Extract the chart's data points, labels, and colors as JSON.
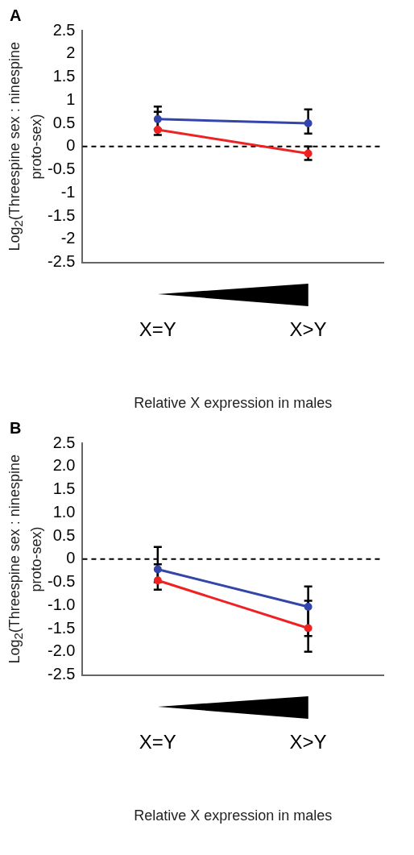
{
  "chart_data": [
    {
      "type": "line",
      "title": "A",
      "categories": [
        "X=Y",
        "X>Y"
      ],
      "xlabel": "Relative X expression in males",
      "ylabel": "Log$_{2}$(Threespine sex : ninespine proto-sex)",
      "ylim": [
        -2.5,
        2.5
      ],
      "yticks": [
        2.5,
        2,
        1.5,
        1,
        0.5,
        0,
        -0.5,
        -1,
        -1.5,
        -2,
        -2.5
      ],
      "grid": false,
      "legend": false,
      "marker": "circle",
      "series": [
        {
          "color": "#3344aa",
          "values": [
            0.59,
            0.5
          ],
          "errors": [
            [
              0.37,
              0.86
            ],
            [
              0.28,
              0.8
            ]
          ]
        },
        {
          "color": "#ee2222",
          "values": [
            0.36,
            -0.15
          ],
          "errors": [
            [
              0.25,
              0.75
            ],
            [
              -0.29,
              0.0
            ]
          ]
        }
      ],
      "ref_lines": [
        {
          "axis": "y",
          "value": 0,
          "line_style": "dashed",
          "color": "#000000"
        }
      ]
    },
    {
      "type": "line",
      "title": "B",
      "categories": [
        "X=Y",
        "X>Y"
      ],
      "xlabel": "Relative X expression in males",
      "ylabel": "Log$_{2}$(Threespine sex : ninespine proto-sex)",
      "ylim": [
        -2.5,
        2.5
      ],
      "yticks": [
        {
          "value": 2.5,
          "label": "2.5"
        },
        {
          "value": 2,
          "label": "2.0"
        },
        {
          "value": 1.5,
          "label": "1.5"
        },
        {
          "value": 1,
          "label": "1.0"
        },
        {
          "value": 0.5,
          "label": "0.5"
        },
        {
          "value": 0,
          "label": "0"
        },
        {
          "value": -0.5,
          "label": "-0.5"
        },
        {
          "value": -1,
          "label": "-1.0"
        },
        {
          "value": -1.5,
          "label": "-1.5"
        },
        {
          "value": -2,
          "label": "-2.0"
        },
        {
          "value": -2.5,
          "label": "-2.5"
        }
      ],
      "grid": false,
      "legend": false,
      "marker": "circle",
      "series": [
        {
          "color": "#3344aa",
          "values": [
            -0.22,
            -1.03
          ],
          "errors": [
            [
              -0.66,
              0.26
            ],
            [
              -1.66,
              -0.59
            ]
          ]
        },
        {
          "color": "#ee2222",
          "values": [
            -0.46,
            -1.49
          ],
          "errors": [
            [
              -0.5,
              -0.11
            ],
            [
              -2.0,
              -0.9
            ]
          ]
        }
      ],
      "ref_lines": [
        {
          "axis": "y",
          "value": 0,
          "line_style": "dashed",
          "color": "#000000"
        }
      ]
    }
  ]
}
